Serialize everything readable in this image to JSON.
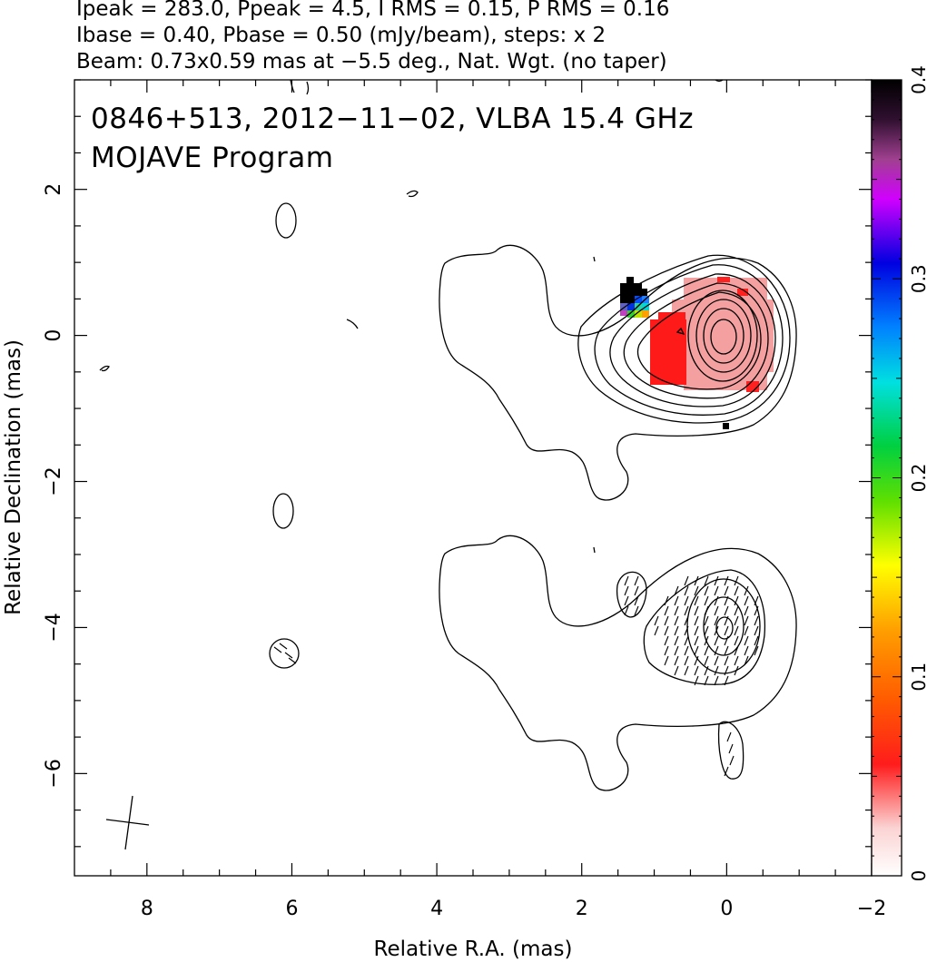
{
  "header": {
    "line1": "Ipeak = 283.0, Ppeak = 4.5, I RMS = 0.15, P RMS = 0.16",
    "line2": "Ibase = 0.40, Pbase = 0.50 (mJy/beam), steps: x 2",
    "line3": "Beam: 0.73x0.59 mas at −5.5 deg., Nat. Wgt. (no taper)"
  },
  "panel": {
    "title": "0846+513, 2012−11−02, VLBA 15.4 GHz",
    "subtitle": "MOJAVE Program"
  },
  "chart_data": {
    "type": "heatmap",
    "xlabel": "Relative R.A. (mas)",
    "ylabel": "Relative Declination (mas)",
    "xlim": [
      9,
      -2
    ],
    "ylim": [
      -7.4,
      3.5
    ],
    "xticks": [
      8,
      6,
      4,
      2,
      0,
      -2
    ],
    "xtick_labels": [
      "8",
      "6",
      "4",
      "2",
      "0",
      "−2"
    ],
    "yticks": [
      2,
      0,
      -2,
      -4,
      -6
    ],
    "ytick_labels": [
      "2",
      "0",
      "−2",
      "−4",
      "−6"
    ],
    "colorbar": {
      "min": 0,
      "max": 0.4,
      "ticks": [
        0,
        0.1,
        0.2,
        0.3,
        0.4
      ],
      "tick_labels": [
        "0",
        "0.1",
        "0.2",
        "0.3",
        "0.4"
      ]
    },
    "core": {
      "x": 0,
      "y": 0
    },
    "image_copy_offset_dec": -4,
    "beam": {
      "major_mas": 0.73,
      "minor_mas": 0.59,
      "pa_deg": -5.5,
      "center": [
        8.2,
        -6.6
      ]
    },
    "ipeak_mjy": 283.0,
    "ppeak_mjy": 4.5,
    "i_rms": 0.15,
    "p_rms": 0.16,
    "ibase_mjy": 0.4,
    "pbase_mjy": 0.5,
    "contour_step_factor": 2,
    "core_contour_levels_mjy": [
      0.4,
      0.8,
      1.6,
      3.2,
      6.4,
      12.8,
      25.6,
      51.2,
      102.4,
      204.8
    ],
    "fracpol_pixels": [
      {
        "x": 1.3,
        "y": 0.6,
        "v": 0.4
      },
      {
        "x": 1.2,
        "y": 0.5,
        "v": 0.38
      },
      {
        "x": 1.4,
        "y": 0.45,
        "v": 0.37
      },
      {
        "x": 1.3,
        "y": 0.4,
        "v": 0.3
      },
      {
        "x": 1.2,
        "y": 0.4,
        "v": 0.22
      },
      {
        "x": 1.2,
        "y": 0.3,
        "v": 0.16
      },
      {
        "x": 1.35,
        "y": 0.3,
        "v": 0.2
      },
      {
        "x": 0.75,
        "y": -0.2,
        "v": 0.055
      },
      {
        "x": 0.0,
        "y": 0.0,
        "v": 0.02
      }
    ]
  }
}
